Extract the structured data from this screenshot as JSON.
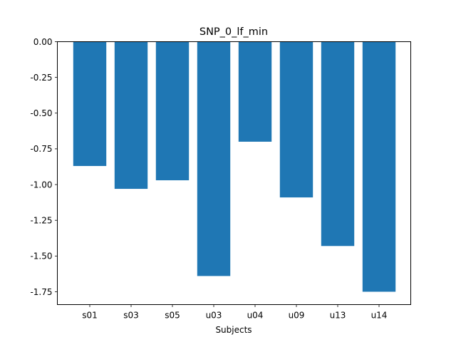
{
  "chart_data": {
    "type": "bar",
    "title": "SNP_0_lf_min",
    "xlabel": "Subjects",
    "ylabel": "",
    "categories": [
      "s01",
      "s03",
      "s05",
      "u03",
      "u04",
      "u09",
      "u13",
      "u14"
    ],
    "values": [
      -0.87,
      -1.03,
      -0.97,
      -1.64,
      -0.7,
      -1.09,
      -1.43,
      -1.75
    ],
    "ylim": [
      -1.84,
      0.0
    ],
    "yticks": [
      "0.00",
      "-0.25",
      "-0.50",
      "-0.75",
      "-1.00",
      "-1.25",
      "-1.50",
      "-1.75"
    ],
    "ytick_values": [
      0.0,
      -0.25,
      -0.5,
      -0.75,
      -1.0,
      -1.25,
      -1.5,
      -1.75
    ],
    "bar_color": "#1f77b4",
    "grid": false,
    "legend": "none"
  }
}
